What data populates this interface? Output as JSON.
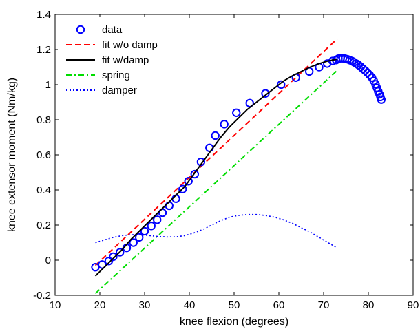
{
  "chart_data": {
    "type": "line",
    "xlabel": "knee flexion (degrees)",
    "ylabel": "knee extensor moment (Nm/kg)",
    "xlim": [
      10,
      90
    ],
    "ylim": [
      -0.2,
      1.4
    ],
    "xticks": [
      10,
      20,
      30,
      40,
      50,
      60,
      70,
      80,
      90
    ],
    "yticks": [
      -0.2,
      0,
      0.2,
      0.4,
      0.6,
      0.8,
      1,
      1.2,
      1.4
    ],
    "xtick_labels": [
      "10",
      "20",
      "30",
      "40",
      "50",
      "60",
      "70",
      "80",
      "90"
    ],
    "ytick_labels": [
      "-0.2",
      "0",
      "0.2",
      "0.4",
      "0.6",
      "0.8",
      "1",
      "1.2",
      "1.4"
    ],
    "grid": false,
    "legend_position": "top-left",
    "series": [
      {
        "name": "data",
        "style": "markers",
        "marker": "circle",
        "color": "#0000ff",
        "x": [
          19,
          20.5,
          22,
          23,
          24.5,
          26,
          27.5,
          28.8,
          30,
          31.5,
          32.8,
          34,
          35.5,
          37,
          38.5,
          39.8,
          41.2,
          42.6,
          44.5,
          45.8,
          47.8,
          50.5,
          53.5,
          57,
          60.5,
          63.8,
          66.8,
          69,
          70.8,
          72,
          72.8,
          73.3,
          73.8,
          74.3,
          74.8,
          75.3,
          75.8,
          76.3,
          76.8,
          77.3,
          77.8,
          78.3,
          78.8,
          79.3,
          79.8,
          80.3,
          80.8,
          81.2,
          81.6,
          81.9,
          82.2,
          82.5,
          82.7,
          82.9
        ],
        "y": [
          -0.04,
          -0.025,
          -0.005,
          0.02,
          0.045,
          0.07,
          0.1,
          0.13,
          0.165,
          0.195,
          0.23,
          0.27,
          0.31,
          0.35,
          0.405,
          0.45,
          0.49,
          0.56,
          0.64,
          0.71,
          0.775,
          0.84,
          0.895,
          0.95,
          1.0,
          1.04,
          1.075,
          1.1,
          1.12,
          1.135,
          1.14,
          1.148,
          1.15,
          1.15,
          1.148,
          1.145,
          1.14,
          1.135,
          1.128,
          1.12,
          1.112,
          1.102,
          1.09,
          1.08,
          1.068,
          1.055,
          1.04,
          1.022,
          1.002,
          0.982,
          0.962,
          0.945,
          0.93,
          0.915
        ]
      },
      {
        "name": "fit w/o damp",
        "style": "dashed",
        "color": "#ff0000",
        "x": [
          19,
          73
        ],
        "y": [
          -0.03,
          1.26
        ]
      },
      {
        "name": "fit w/damp",
        "style": "solid",
        "color": "#000000",
        "x": [
          19,
          21,
          23,
          25,
          27,
          29,
          31,
          33,
          35,
          37,
          39,
          41,
          43,
          45,
          47,
          49,
          51,
          53,
          55,
          57,
          59,
          61,
          63,
          65,
          67,
          69,
          71,
          73
        ],
        "y": [
          -0.09,
          -0.04,
          0.01,
          0.06,
          0.12,
          0.17,
          0.22,
          0.27,
          0.32,
          0.37,
          0.42,
          0.49,
          0.56,
          0.63,
          0.7,
          0.76,
          0.81,
          0.86,
          0.9,
          0.94,
          0.98,
          1.02,
          1.05,
          1.075,
          1.1,
          1.12,
          1.135,
          1.145
        ]
      },
      {
        "name": "spring",
        "style": "dashdot",
        "color": "#00dd00",
        "x": [
          19,
          73
        ],
        "y": [
          -0.19,
          1.08
        ]
      },
      {
        "name": "damper",
        "style": "dotted",
        "color": "#0000ff",
        "x": [
          19,
          21,
          23,
          25,
          27,
          29,
          31,
          33,
          35,
          37,
          39,
          41,
          43,
          45,
          47,
          49,
          51,
          53,
          55,
          57,
          59,
          61,
          63,
          65,
          67,
          69,
          71,
          73
        ],
        "y": [
          0.1,
          0.115,
          0.13,
          0.14,
          0.145,
          0.145,
          0.14,
          0.135,
          0.132,
          0.133,
          0.14,
          0.155,
          0.175,
          0.2,
          0.225,
          0.245,
          0.255,
          0.26,
          0.26,
          0.255,
          0.245,
          0.23,
          0.21,
          0.185,
          0.16,
          0.13,
          0.1,
          0.07
        ]
      }
    ]
  }
}
